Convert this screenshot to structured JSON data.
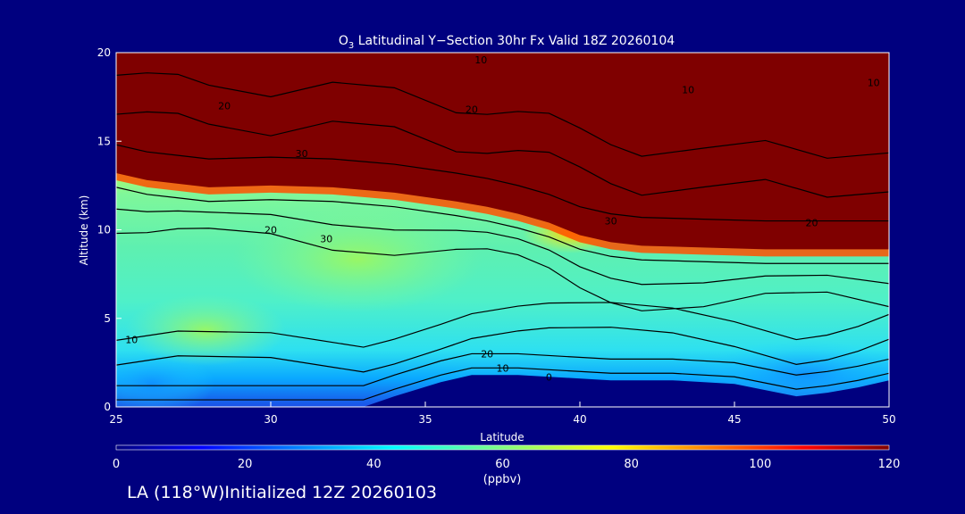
{
  "chart_data": {
    "type": "heatmap",
    "title": {
      "species_base": "O",
      "species_sub": "3",
      "rest": " Latitudinal Y−Section 30hr  Fx Valid 18Z 20260104"
    },
    "xlabel": "Latitude",
    "ylabel": "Altitude (km)",
    "xlim": [
      25,
      50
    ],
    "ylim": [
      0,
      20
    ],
    "x_ticks": [
      25,
      30,
      35,
      40,
      45,
      50
    ],
    "y_ticks": [
      0,
      5,
      10,
      15,
      20
    ],
    "colorbar": {
      "min": 0,
      "max": 120,
      "ticks": [
        0,
        20,
        40,
        60,
        80,
        100,
        120
      ],
      "unit": "(ppbv)"
    },
    "colors": {
      "background": "#00007f",
      "frame": "#ffffff",
      "contour": "#000000",
      "terrain": "#00007f"
    },
    "terrain": [
      [
        25,
        0
      ],
      [
        27,
        0
      ],
      [
        30,
        0
      ],
      [
        33,
        0
      ],
      [
        34,
        0.6
      ],
      [
        35.5,
        1.4
      ],
      [
        36.5,
        1.8
      ],
      [
        38,
        1.8
      ],
      [
        39,
        1.7
      ],
      [
        41,
        1.5
      ],
      [
        43,
        1.5
      ],
      [
        45,
        1.3
      ],
      [
        47,
        0.6
      ],
      [
        48,
        0.8
      ],
      [
        49,
        1.1
      ],
      [
        50,
        1.5
      ]
    ],
    "tropopause": [
      [
        25,
        13.2
      ],
      [
        26,
        12.8
      ],
      [
        27,
        12.6
      ],
      [
        28,
        12.4
      ],
      [
        30,
        12.5
      ],
      [
        32,
        12.4
      ],
      [
        34,
        12.1
      ],
      [
        36,
        11.6
      ],
      [
        37,
        11.3
      ],
      [
        38,
        10.9
      ],
      [
        39,
        10.4
      ],
      [
        40,
        9.7
      ],
      [
        41,
        9.3
      ],
      [
        42,
        9.1
      ],
      [
        44,
        9.0
      ],
      [
        46,
        8.9
      ],
      [
        48,
        8.9
      ],
      [
        50,
        8.9
      ]
    ],
    "contour_labels": [
      {
        "text": "10",
        "lat": 43.5,
        "alt": 17.9
      },
      {
        "text": "10",
        "lat": 36.8,
        "alt": 19.6
      },
      {
        "text": "10",
        "lat": 49.5,
        "alt": 18.3
      },
      {
        "text": "20",
        "lat": 28.5,
        "alt": 17.0
      },
      {
        "text": "20",
        "lat": 30.0,
        "alt": 10.0
      },
      {
        "text": "20",
        "lat": 36.5,
        "alt": 16.8
      },
      {
        "text": "30",
        "lat": 31.0,
        "alt": 14.3
      },
      {
        "text": "30",
        "lat": 31.8,
        "alt": 9.5
      },
      {
        "text": "30",
        "lat": 41.0,
        "alt": 10.5
      },
      {
        "text": "10",
        "lat": 25.5,
        "alt": 3.8
      },
      {
        "text": "20",
        "lat": 37.0,
        "alt": 3.0
      },
      {
        "text": "10",
        "lat": 37.5,
        "alt": 2.2
      },
      {
        "text": "0",
        "lat": 39.0,
        "alt": 1.7
      },
      {
        "text": "20",
        "lat": 47.5,
        "alt": 10.4
      }
    ]
  },
  "footer": "LA (118°W)Initialized 12Z 20260103"
}
